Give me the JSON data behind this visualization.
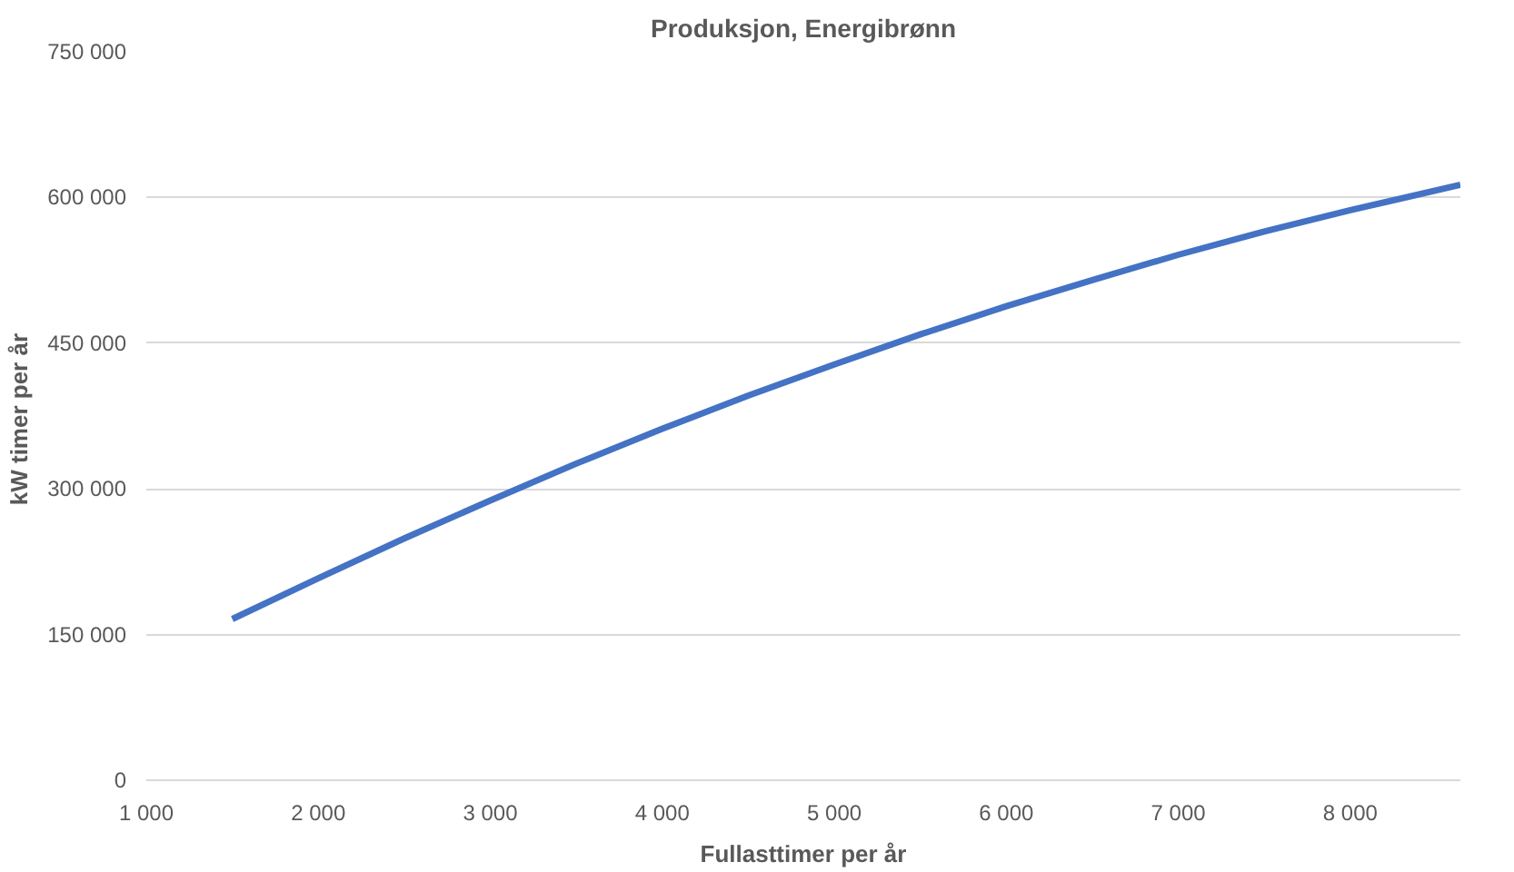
{
  "chart_data": {
    "type": "line",
    "title": "Produksjon, Energibrønn",
    "xlabel": "Fullasttimer per år",
    "ylabel": "kW timer  per år",
    "x": [
      1500,
      2000,
      2500,
      3000,
      3500,
      4000,
      4500,
      5000,
      5500,
      6000,
      6500,
      7000,
      7500,
      8000,
      8640
    ],
    "series": [
      {
        "color": "#4472c4",
        "values": [
          166000,
          208000,
          249000,
          288000,
          326000,
          362000,
          396000,
          428000,
          459000,
          488000,
          515000,
          541000,
          565000,
          587000,
          613000
        ]
      }
    ],
    "xlim": [
      1000,
      8640
    ],
    "ylim": [
      0,
      750000
    ],
    "xticks": [
      {
        "value": 1000,
        "label": "1 000"
      },
      {
        "value": 2000,
        "label": "2 000"
      },
      {
        "value": 3000,
        "label": "3 000"
      },
      {
        "value": 4000,
        "label": "4 000"
      },
      {
        "value": 5000,
        "label": "5 000"
      },
      {
        "value": 6000,
        "label": "6 000"
      },
      {
        "value": 7000,
        "label": "7 000"
      },
      {
        "value": 8000,
        "label": "8 000"
      }
    ],
    "yticks": [
      0,
      {
        "value": 150000,
        "label": "150 000"
      },
      {
        "value": 300000,
        "label": "300 000"
      },
      {
        "value": 450000,
        "label": "450 000"
      },
      {
        "value": 600000,
        "label": "600 000"
      },
      {
        "value": 750000,
        "label": "750 000"
      }
    ],
    "grid": "y",
    "marker": "none",
    "line_style": "solid"
  }
}
